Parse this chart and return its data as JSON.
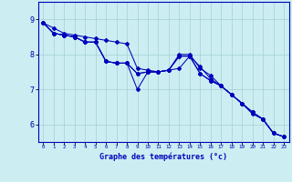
{
  "title": "Graphe des températures (°c)",
  "bg_color": "#cceef2",
  "line_color": "#0000bb",
  "grid_color": "#aad4da",
  "ylim": [
    5.5,
    9.5
  ],
  "yticks": [
    6,
    7,
    8,
    9
  ],
  "xlim": [
    -0.5,
    23.5
  ],
  "line1": [
    8.9,
    8.75,
    8.6,
    8.55,
    8.5,
    8.45,
    8.4,
    8.35,
    8.3,
    7.6,
    7.55,
    7.5,
    7.55,
    7.6,
    7.95,
    7.65,
    7.3,
    7.1,
    6.85,
    6.6,
    6.3,
    6.15,
    5.75,
    5.65
  ],
  "line2": [
    8.9,
    8.6,
    8.55,
    8.5,
    8.35,
    8.35,
    7.8,
    7.75,
    7.75,
    7.45,
    7.5,
    7.5,
    7.55,
    8.0,
    8.0,
    7.6,
    7.4,
    7.1,
    6.85,
    6.6,
    6.35,
    6.15,
    5.75,
    5.65
  ],
  "line3": [
    8.9,
    8.6,
    8.55,
    8.5,
    8.35,
    8.35,
    7.8,
    7.75,
    7.75,
    7.45,
    7.5,
    7.5,
    7.55,
    7.95,
    7.95,
    7.45,
    7.25,
    7.1,
    6.85,
    6.6,
    6.35,
    6.15,
    5.75,
    5.65
  ],
  "line4": [
    8.9,
    8.6,
    8.55,
    8.5,
    8.35,
    8.35,
    7.8,
    7.75,
    7.75,
    7.0,
    7.5,
    7.5,
    7.55,
    7.95,
    7.95,
    7.45,
    7.25,
    7.1,
    6.85,
    6.6,
    6.35,
    6.15,
    5.75,
    5.65
  ]
}
